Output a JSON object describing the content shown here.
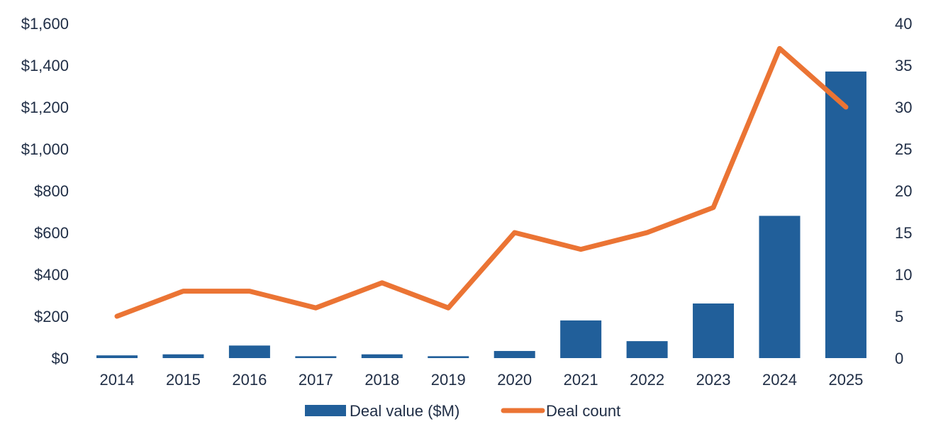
{
  "chart_data": {
    "type": "bar+line",
    "categories": [
      "2014",
      "2015",
      "2016",
      "2017",
      "2018",
      "2019",
      "2020",
      "2021",
      "2022",
      "2023",
      "2024",
      "2025"
    ],
    "series": [
      {
        "name": "Deal value ($M)",
        "type": "bar",
        "axis": "left",
        "color": "#215f9a",
        "values": [
          13,
          18,
          60,
          9,
          18,
          9,
          34,
          180,
          81,
          261,
          680,
          1370
        ]
      },
      {
        "name": "Deal count",
        "type": "line",
        "axis": "right",
        "color": "#eb7434",
        "values": [
          5,
          8,
          8,
          6,
          9,
          6,
          15,
          13,
          15,
          18,
          37,
          30
        ]
      }
    ],
    "left_axis": {
      "ylim": [
        0,
        1600
      ],
      "ticks": [
        "$0",
        "$200",
        "$400",
        "$600",
        "$800",
        "$1,000",
        "$1,200",
        "$1,400",
        "$1,600"
      ]
    },
    "right_axis": {
      "ylim": [
        0,
        40
      ],
      "ticks": [
        "0",
        "5",
        "10",
        "15",
        "20",
        "25",
        "30",
        "35",
        "40"
      ]
    },
    "grid": false,
    "legend": "bottom",
    "title": "",
    "xlabel": "",
    "ylabel": ""
  }
}
